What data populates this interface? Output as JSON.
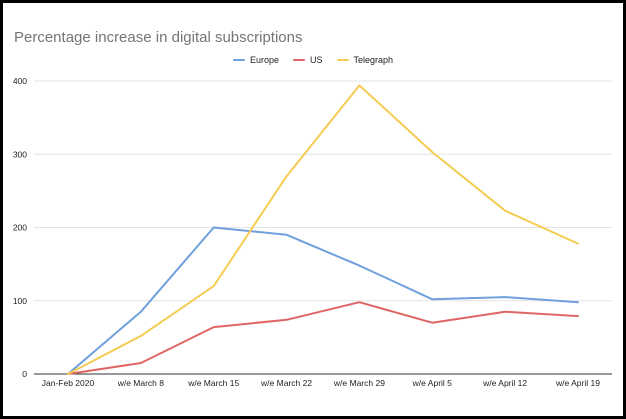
{
  "chart_data": {
    "type": "line",
    "title": "Percentage increase in digital subscriptions",
    "xlabel": "",
    "ylabel": "",
    "categories": [
      "Jan-Feb 2020",
      "w/e March 8",
      "w/e March 15",
      "w/e March 22",
      "w/e March 29",
      "w/e April 5",
      "w/e April 12",
      "w/e April 19"
    ],
    "ylim": [
      0,
      400
    ],
    "yticks": [
      0,
      100,
      200,
      300,
      400
    ],
    "grid": true,
    "legend": "top",
    "series": [
      {
        "name": "Europe",
        "color": "#6fa0dc",
        "values": [
          0,
          85,
          200,
          190,
          148,
          102,
          105,
          98
        ]
      },
      {
        "name": "US",
        "color": "#e06666",
        "values": [
          0,
          15,
          64,
          74,
          98,
          70,
          85,
          79
        ]
      },
      {
        "name": "Telegraph",
        "color": "#f4cc52",
        "values": [
          0,
          52,
          120,
          270,
          394,
          303,
          223,
          178
        ]
      }
    ]
  }
}
